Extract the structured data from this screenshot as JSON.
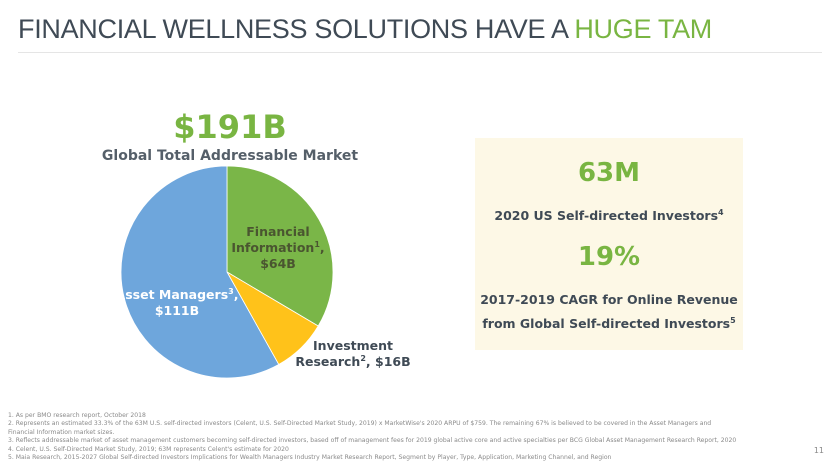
{
  "header": {
    "title_main": "FINANCIAL WELLNESS SOLUTIONS HAVE A ",
    "title_highlight": "HUGE TAM"
  },
  "colors": {
    "accent": "#79b542",
    "text": "#3f4a55",
    "box_bg": "#fdf8e6"
  },
  "chart_data": {
    "type": "pie",
    "title": "$191B",
    "subtitle": "Global Total Addressable Market",
    "total": 191,
    "unit": "$B",
    "slices": [
      {
        "name_lines": [
          "Financial",
          "Information"
        ],
        "sup": "1",
        "value": 64,
        "value_label": "$64B",
        "color": "#7ab648",
        "label_color": "#4a5530"
      },
      {
        "name_lines": [
          "Investment",
          "Research"
        ],
        "sup": "2",
        "value": 16,
        "value_label": "$16B",
        "color": "#ffc21a",
        "label_color": "#3f4a55"
      },
      {
        "name_lines": [
          "Asset Managers"
        ],
        "sup": "3",
        "value": 111,
        "value_label": "$111B",
        "color": "#6ea6dc",
        "label_color": "#ffffff"
      }
    ]
  },
  "stats": {
    "investors_value": "63M",
    "investors_label": "2020 US Self-directed Investors",
    "investors_sup": "4",
    "cagr_value": "19%",
    "cagr_label_line1": "2017-2019 CAGR for Online Revenue",
    "cagr_label_line2": "from Global Self-directed Investors",
    "cagr_sup": "5"
  },
  "footnotes": [
    "1. As per BMO research report, October 2018",
    "2. Represents an estimated 33.3% of the 63M U.S. self-directed investors (Celent, U.S. Self-Directed Market Study, 2019) x MarketWise's 2020 ARPU of $759.  The remaining 67% is believed to be covered in the Asset Managers and",
    "    Financial Information market sizes.",
    "3. Reflects addressable market of asset management customers becoming self-directed investors, based off of management fees for 2019 global active core and active specialties per BCG Global Asset Management Research Report, 2020",
    "4. Celent, U.S. Self-Directed Market Study, 2019; 63M represents Celent's estimate for 2020",
    "5. Maia Research, 2015-2027 Global Self-directed Investors Implications for Wealth Managers Industry Market Research Report, Segment by Player, Type, Application, Marketing Channel, and Region"
  ],
  "page_number": "11"
}
